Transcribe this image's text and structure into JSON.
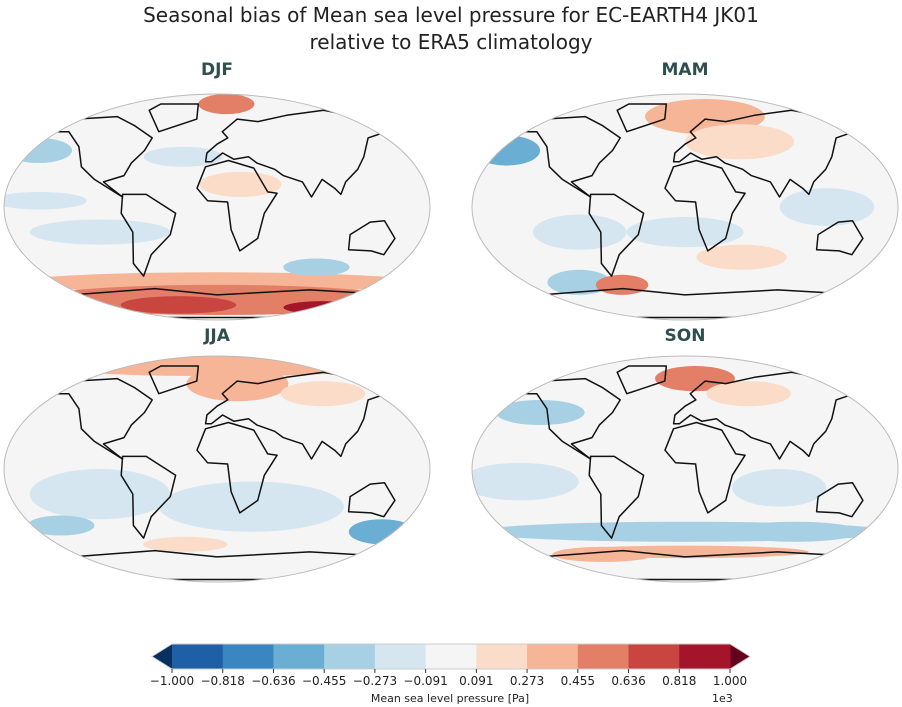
{
  "title": [
    "Seasonal bias of Mean sea level pressure for EC-EARTH4 JK01",
    "relative to ERA5 climatology"
  ],
  "chart_data": {
    "type": "heatmap",
    "title": "Seasonal bias of Mean sea level pressure for EC-EARTH4 JK01 relative to ERA5 climatology",
    "projection": "robinson",
    "panels": [
      {
        "season": "DJF",
        "anomalies": [
          {
            "lon": 0,
            "lat": -60,
            "dlon": 190,
            "dlat": 8,
            "value": 0.3
          },
          {
            "lon": 0,
            "lat": -74,
            "dlon": 190,
            "dlat": 12,
            "value": 0.5
          },
          {
            "lon": -40,
            "lat": -78,
            "dlon": 60,
            "dlat": 7,
            "value": 0.75
          },
          {
            "lon": 110,
            "lat": -80,
            "dlon": 40,
            "dlat": 5,
            "value": 0.85
          },
          {
            "lon": 10,
            "lat": 82,
            "dlon": 30,
            "dlat": 8,
            "value": 0.55
          },
          {
            "lon": -160,
            "lat": 45,
            "dlon": 30,
            "dlat": 10,
            "value": -0.45
          },
          {
            "lon": -150,
            "lat": 5,
            "dlon": 40,
            "dlat": 7,
            "value": -0.2
          },
          {
            "lon": -100,
            "lat": -20,
            "dlon": 60,
            "dlat": 10,
            "value": -0.2
          },
          {
            "lon": 90,
            "lat": -48,
            "dlon": 30,
            "dlat": 7,
            "value": -0.4
          },
          {
            "lon": 20,
            "lat": 18,
            "dlon": 35,
            "dlat": 10,
            "value": 0.18
          },
          {
            "lon": -30,
            "lat": 40,
            "dlon": 35,
            "dlat": 8,
            "value": -0.2
          }
        ]
      },
      {
        "season": "MAM",
        "anomalies": [
          {
            "lon": -160,
            "lat": 45,
            "dlon": 30,
            "dlat": 12,
            "value": -0.5
          },
          {
            "lon": 20,
            "lat": 72,
            "dlon": 60,
            "dlat": 14,
            "value": 0.3
          },
          {
            "lon": 50,
            "lat": 52,
            "dlon": 50,
            "dlat": 14,
            "value": 0.2
          },
          {
            "lon": -100,
            "lat": -60,
            "dlon": 30,
            "dlat": 10,
            "value": -0.4
          },
          {
            "lon": -60,
            "lat": -62,
            "dlon": 25,
            "dlat": 8,
            "value": 0.6
          },
          {
            "lon": 50,
            "lat": -40,
            "dlon": 40,
            "dlat": 10,
            "value": 0.15
          },
          {
            "lon": -90,
            "lat": -20,
            "dlon": 40,
            "dlat": 14,
            "value": -0.2
          },
          {
            "lon": 0,
            "lat": -20,
            "dlon": 50,
            "dlat": 12,
            "value": -0.15
          },
          {
            "lon": 120,
            "lat": 0,
            "dlon": 40,
            "dlat": 15,
            "value": -0.15
          }
        ]
      },
      {
        "season": "JJA",
        "anomalies": [
          {
            "lon": 0,
            "lat": 82,
            "dlon": 190,
            "dlat": 8,
            "value": 0.4
          },
          {
            "lon": 20,
            "lat": 68,
            "dlon": 50,
            "dlat": 14,
            "value": 0.45
          },
          {
            "lon": 100,
            "lat": 60,
            "dlon": 40,
            "dlat": 10,
            "value": 0.2
          },
          {
            "lon": -100,
            "lat": -20,
            "dlon": 60,
            "dlat": 20,
            "value": -0.2
          },
          {
            "lon": 30,
            "lat": -30,
            "dlon": 80,
            "dlat": 20,
            "value": -0.15
          },
          {
            "lon": 150,
            "lat": -50,
            "dlon": 30,
            "dlat": 10,
            "value": -0.6
          },
          {
            "lon": -140,
            "lat": -45,
            "dlon": 30,
            "dlat": 8,
            "value": -0.45
          },
          {
            "lon": -30,
            "lat": -60,
            "dlon": 40,
            "dlat": 6,
            "value": 0.2
          }
        ]
      },
      {
        "season": "SON",
        "anomalies": [
          {
            "lon": 10,
            "lat": 72,
            "dlon": 40,
            "dlat": 10,
            "value": 0.5
          },
          {
            "lon": 60,
            "lat": 60,
            "dlon": 40,
            "dlat": 10,
            "value": 0.2
          },
          {
            "lon": -130,
            "lat": 45,
            "dlon": 40,
            "dlat": 10,
            "value": -0.3
          },
          {
            "lon": -140,
            "lat": -10,
            "dlon": 50,
            "dlat": 15,
            "value": -0.2
          },
          {
            "lon": 80,
            "lat": -15,
            "dlon": 40,
            "dlat": 15,
            "value": -0.2
          },
          {
            "lon": 0,
            "lat": -50,
            "dlon": 190,
            "dlat": 8,
            "value": -0.3
          },
          {
            "lon": 100,
            "lat": -50,
            "dlon": 60,
            "dlat": 8,
            "value": -0.45
          },
          {
            "lon": 0,
            "lat": -66,
            "dlon": 120,
            "dlat": 5,
            "value": 0.3
          },
          {
            "lon": -80,
            "lat": -68,
            "dlon": 50,
            "dlat": 6,
            "value": 0.4
          }
        ]
      }
    ],
    "colorbar": {
      "label": "Mean sea level pressure [Pa]",
      "offset_label": "1e3",
      "ticks": [
        "−1.000",
        "−0.818",
        "−0.636",
        "−0.455",
        "−0.273",
        "−0.091",
        "0.091",
        "0.273",
        "0.455",
        "0.636",
        "0.818",
        "1.000"
      ],
      "levels": [
        -1.0,
        -0.818,
        -0.636,
        -0.455,
        -0.273,
        -0.091,
        0.091,
        0.273,
        0.455,
        0.636,
        0.818,
        1.0
      ],
      "colors": [
        "#1f5fa5",
        "#3a86c0",
        "#6aaed4",
        "#a8d0e5",
        "#d6e6f0",
        "#f5f5f5",
        "#fbdcc9",
        "#f5b596",
        "#e27f66",
        "#c9453f",
        "#a51529"
      ],
      "extend_low": "#053061",
      "extend_high": "#67001f",
      "extend": "both"
    }
  }
}
